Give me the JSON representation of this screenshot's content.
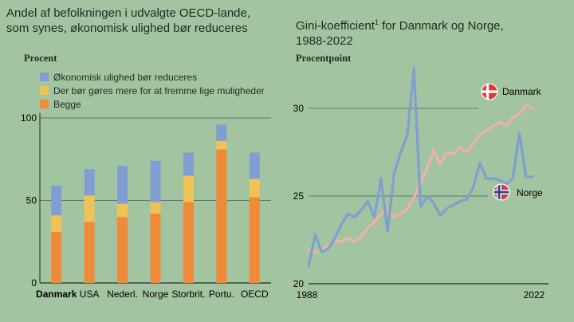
{
  "panels": {
    "left": {
      "title_line1": "Andel af befolkningen i udvalgte OECD-lande,",
      "title_line2": "som synes, økonomisk ulighed bør reduceres",
      "unit": "Procent"
    },
    "right": {
      "title_line1": "Gini-koefficient",
      "title_sup": "1",
      "title_line1_rest": " for Danmark og Norge,",
      "title_line2": "1988-2022",
      "unit": "Procentpoint"
    }
  },
  "colors": {
    "background": "#a3c4a1",
    "blue": "#7f9fd2",
    "yellow": "#efc455",
    "orange": "#ef8a3a",
    "denmark_line": "#efb1aa",
    "norway_line": "#7f9fd2",
    "axis": "#1e2a24",
    "flag_red": "#d93a3a",
    "flag_blue": "#2b4a8c"
  },
  "chart_data": [
    {
      "type": "bar",
      "stacked": true,
      "ylim": [
        0,
        100
      ],
      "yticks": [
        0,
        50,
        100
      ],
      "categories": [
        "Danmark",
        "USA",
        "Nederl.",
        "Norge",
        "Storbrit.",
        "Portu.",
        "OECD"
      ],
      "highlight_category": "Danmark",
      "series": [
        {
          "name": "Begge",
          "color_key": "orange",
          "values": [
            31,
            37,
            40,
            42,
            49,
            81,
            52
          ]
        },
        {
          "name": "Der bør gøres mere for at fremme lige muligheder",
          "color_key": "yellow",
          "values": [
            10,
            16,
            8,
            7,
            16,
            5,
            11
          ]
        },
        {
          "name": "Økonomisk ulighed bør reduceres",
          "color_key": "blue",
          "values": [
            18,
            16,
            23,
            25,
            14,
            10,
            16
          ]
        }
      ],
      "legend_order": [
        2,
        1,
        0
      ]
    },
    {
      "type": "line",
      "xlim": [
        1988,
        2022
      ],
      "xtick_labels": [
        "1988",
        "2022"
      ],
      "ylim": [
        20,
        33
      ],
      "yticks": [
        20,
        25,
        30
      ],
      "reference_lines": [
        30,
        25
      ],
      "x": [
        1988,
        1989,
        1990,
        1991,
        1992,
        1993,
        1994,
        1995,
        1996,
        1997,
        1998,
        1999,
        2000,
        2001,
        2002,
        2003,
        2004,
        2005,
        2006,
        2007,
        2008,
        2009,
        2010,
        2011,
        2012,
        2013,
        2014,
        2015,
        2016,
        2017,
        2018,
        2019,
        2020,
        2021,
        2022
      ],
      "series": [
        {
          "name": "Danmark",
          "color_key": "denmark_line",
          "values": [
            21.9,
            21.8,
            21.9,
            22.2,
            22.5,
            22.4,
            22.6,
            22.4,
            22.7,
            23.2,
            23.5,
            24.0,
            24.2,
            23.8,
            24.0,
            24.3,
            24.9,
            25.8,
            26.6,
            27.6,
            26.8,
            27.5,
            27.4,
            27.8,
            27.5,
            28.0,
            28.5,
            28.7,
            29.0,
            29.2,
            29.0,
            29.5,
            29.7,
            30.2,
            30.0
          ]
        },
        {
          "name": "Norge",
          "color_key": "norway_line",
          "values": [
            21.0,
            22.8,
            21.8,
            22.0,
            22.6,
            23.4,
            24.0,
            23.8,
            24.2,
            24.7,
            23.8,
            26.0,
            23.0,
            26.3,
            27.5,
            28.5,
            32.3,
            24.4,
            25.0,
            24.6,
            23.9,
            24.3,
            24.5,
            24.7,
            24.8,
            25.5,
            26.9,
            26.0,
            26.0,
            25.9,
            25.7,
            26.0,
            28.6,
            26.1,
            26.1
          ]
        }
      ],
      "end_labels": [
        "Danmark",
        "Norge"
      ]
    }
  ]
}
